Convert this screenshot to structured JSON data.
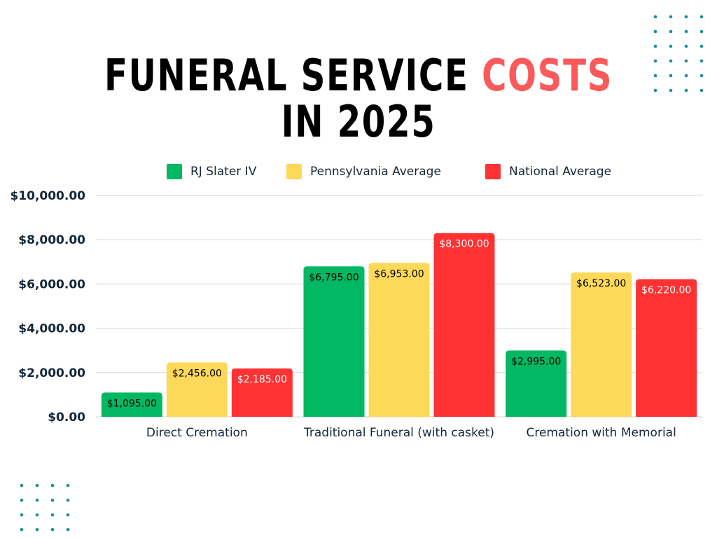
{
  "header": {
    "title_part1": "FUNERAL SERVICE ",
    "title_accent": "COSTS",
    "title_line2": "IN 2025"
  },
  "colors": {
    "accent": "#fb5a5a",
    "dots": "#1a8f95",
    "grid": "#e3e3e3"
  },
  "chart_data": {
    "type": "bar",
    "title": "FUNERAL SERVICE COSTS IN 2025",
    "xlabel": "",
    "ylabel": "",
    "ylim": [
      0,
      10000
    ],
    "grid": true,
    "legend_position": "top",
    "yticks": [
      0,
      2000,
      4000,
      6000,
      8000,
      10000
    ],
    "ytick_labels": [
      "$0.00",
      "$2,000.00",
      "$4,000.00",
      "$6,000.00",
      "$8,000.00",
      "$10,000.00"
    ],
    "categories": [
      "Direct Cremation",
      "Traditional Funeral (with casket)",
      "Cremation with Memorial"
    ],
    "series": [
      {
        "name": "RJ Slater IV",
        "color": "#03b862",
        "label_color": "#000000",
        "values": [
          1095,
          6795,
          2995
        ],
        "labels": [
          "$1,095.00",
          "$6,795.00",
          "$2,995.00"
        ]
      },
      {
        "name": "Pennsylvania Average",
        "color": "#fdd95a",
        "label_color": "#000000",
        "values": [
          2456,
          6953,
          6523
        ],
        "labels": [
          "$2,456.00",
          "$6,953.00",
          "$6,523.00"
        ]
      },
      {
        "name": "National Average",
        "color": "#fe3232",
        "label_color": "#ffffff",
        "values": [
          2185,
          8300,
          6220
        ],
        "labels": [
          "$2,185.00",
          "$8,300.00",
          "$6,220.00"
        ]
      }
    ]
  }
}
